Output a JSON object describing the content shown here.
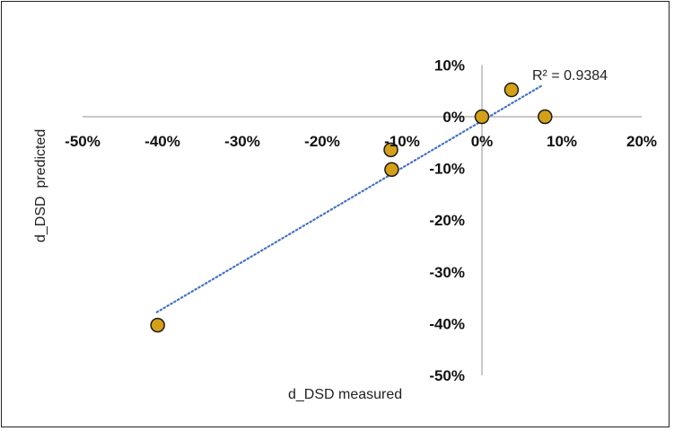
{
  "chart_data": {
    "type": "scatter",
    "title": "",
    "xlabel": "d_DSD measured",
    "ylabel": "d_DSD  predicted",
    "xlim": [
      -50,
      20
    ],
    "ylim": [
      -50,
      10
    ],
    "x_ticks": [
      "-50%",
      "-40%",
      "-30%",
      "-20%",
      "-10%",
      "0%",
      "10%",
      "20%"
    ],
    "x_tick_values": [
      -50,
      -40,
      -30,
      -20,
      -10,
      0,
      10,
      20
    ],
    "y_ticks": [
      "10%",
      "0%",
      "-10%",
      "-20%",
      "-30%",
      "-40%",
      "-50%"
    ],
    "y_tick_values": [
      10,
      0,
      -10,
      -20,
      -30,
      -40,
      -50
    ],
    "grid": false,
    "series": [
      {
        "name": "d_DSD",
        "color": "#D4A017",
        "x": [
          -40.6,
          -11.4,
          -11.3,
          0,
          3.7,
          7.9
        ],
        "y": [
          -40.3,
          -6.4,
          -10.2,
          0,
          5.2,
          0
        ]
      }
    ],
    "trendline": {
      "type": "linear",
      "slope": 0.909,
      "intercept": -0.8,
      "x_range": [
        -40.7,
        7.6
      ],
      "color": "#4472C4",
      "r2_label": "R² = 0.9384"
    }
  }
}
